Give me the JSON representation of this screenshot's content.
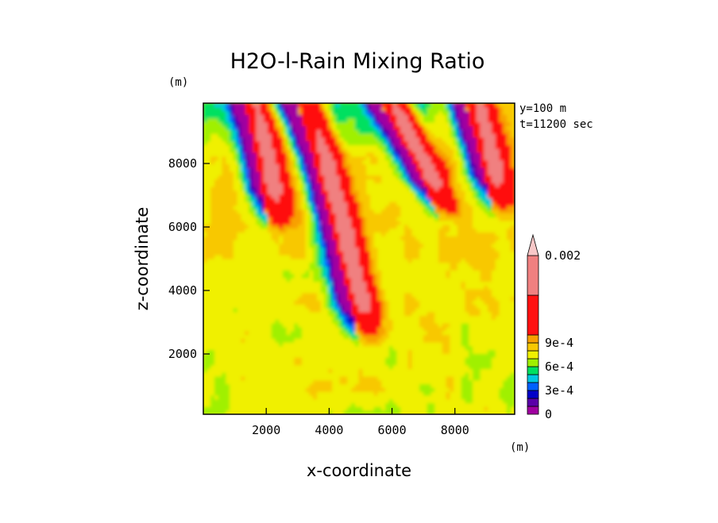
{
  "chart_data": {
    "type": "heatmap",
    "title": "H2O-l-Rain Mixing Ratio",
    "xlabel": "x-coordinate",
    "ylabel": "z-coordinate",
    "x_unit": "(m)",
    "y_unit": "(m)",
    "annotations": [
      "y=100 m",
      "t=11200 sec"
    ],
    "xlim": [
      0,
      9900
    ],
    "ylim": [
      100,
      9900
    ],
    "x_ticks": [
      2000,
      4000,
      6000,
      8000
    ],
    "y_ticks": [
      2000,
      4000,
      6000,
      8000
    ],
    "x_tick_labels": [
      "2000",
      "4000",
      "6000",
      "8000"
    ],
    "y_tick_labels": [
      "2000",
      "4000",
      "6000",
      "8000"
    ],
    "colorbar": {
      "levels": [
        0,
        0.0001,
        0.0002,
        0.0003,
        0.0004,
        0.0005,
        0.0006,
        0.0007,
        0.0008,
        0.0009,
        0.001,
        0.0015,
        0.002
      ],
      "colors": [
        "#a000a0",
        "#5a00a8",
        "#0000c8",
        "#0060ff",
        "#00c8e0",
        "#00e060",
        "#a0f000",
        "#f0f000",
        "#f8c800",
        "#f8a000",
        "#ff1010",
        "#f08080",
        "#f8c8c8"
      ],
      "tick_labels": [
        {
          "value": 0,
          "label": "0"
        },
        {
          "value": 0.0003,
          "label": "3e-4"
        },
        {
          "value": 0.0006,
          "label": "6e-4"
        },
        {
          "value": 0.0009,
          "label": "9e-4"
        },
        {
          "value": 0.002,
          "label": "0.002"
        }
      ],
      "extend": "max"
    },
    "features": [
      {
        "x_top": 1300,
        "x_bot": 2100,
        "z_bot": 5800,
        "kind": "dry_band"
      },
      {
        "x_top": 2950,
        "x_bot": 5000,
        "z_bot": 2200,
        "kind": "dry_band"
      },
      {
        "x_top": 5600,
        "x_bot": 7600,
        "z_bot": 6100,
        "kind": "dry_band"
      },
      {
        "x_top": 8300,
        "x_bot": 9300,
        "z_bot": 6200,
        "kind": "dry_band"
      }
    ]
  }
}
